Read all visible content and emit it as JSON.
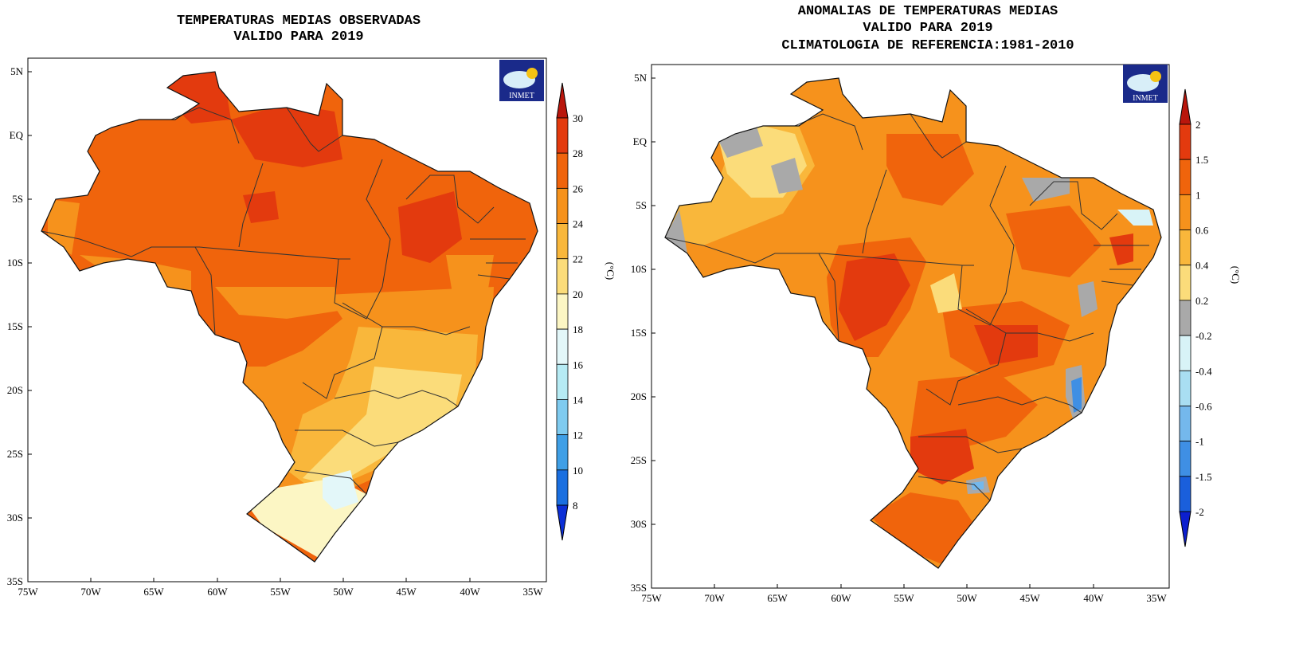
{
  "left_panel": {
    "title_line1": "TEMPERATURAS MEDIAS OBSERVADAS",
    "title_line2": "VALIDO PARA 2019",
    "logo_text": "INMET",
    "units_label": "(°C)",
    "y_ticks": [
      "5N",
      "EQ",
      "5S",
      "10S",
      "15S",
      "20S",
      "25S",
      "30S",
      "35S"
    ],
    "x_ticks": [
      "75W",
      "70W",
      "65W",
      "60W",
      "55W",
      "50W",
      "45W",
      "40W",
      "35W"
    ],
    "colorbar_labels": [
      "30",
      "28",
      "26",
      "24",
      "22",
      "20",
      "18",
      "16",
      "14",
      "12",
      "10",
      "8"
    ],
    "colorbar_colors": [
      "#b9160c",
      "#e33a0e",
      "#f0640c",
      "#f6921c",
      "#f9b73b",
      "#fbdc7a",
      "#fcf6c4",
      "#e3f7f9",
      "#b6ebf4",
      "#7fcbf0",
      "#3f9fe6",
      "#1a6fe0",
      "#0c2fd6"
    ]
  },
  "right_panel": {
    "title_line1": "ANOMALIAS DE TEMPERATURAS MEDIAS",
    "title_line2": "VALIDO PARA 2019",
    "title_line3": "CLIMATOLOGIA DE REFERENCIA:1981-2010",
    "logo_text": "INMET",
    "units_label": "(°C)",
    "y_ticks": [
      "5N",
      "EQ",
      "5S",
      "10S",
      "15S",
      "20S",
      "25S",
      "30S",
      "35S"
    ],
    "x_ticks": [
      "75W",
      "70W",
      "65W",
      "60W",
      "55W",
      "50W",
      "45W",
      "40W",
      "35W"
    ],
    "colorbar_labels": [
      "2",
      "1.5",
      "1",
      "0.6",
      "0.4",
      "0.2",
      "-0.2",
      "-0.4",
      "-0.6",
      "-1",
      "-1.5",
      "-2"
    ],
    "colorbar_colors": [
      "#b9160c",
      "#e33a0e",
      "#f0640c",
      "#f6921c",
      "#f9b73b",
      "#fbdc7a",
      "#a9a9a9",
      "#d8f3f7",
      "#a9def2",
      "#74b8ec",
      "#3f8fe4",
      "#1a5fdc",
      "#0c1fcf"
    ]
  },
  "map_colors": {
    "land_base": "#f0640c",
    "warm_dark": "#e33a0e",
    "orange": "#f6921c",
    "light_orange": "#f9b73b",
    "yellow": "#fbdc7a",
    "pale": "#fcf6c4",
    "cyan_light": "#d8f3f7",
    "gray": "#a9a9a9",
    "blue": "#3f8fe4"
  }
}
